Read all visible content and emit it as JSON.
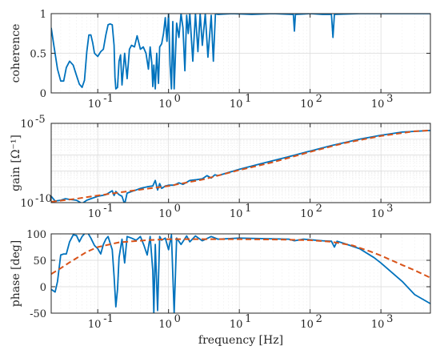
{
  "chart_data": [
    {
      "type": "line",
      "ylabel": "coherence",
      "xscale": "log",
      "xlim": [
        0.022,
        5000
      ],
      "ylim": [
        0,
        1
      ],
      "yticks": [
        {
          "v": 0,
          "label": "0"
        },
        {
          "v": 0.5,
          "label": "0.5"
        },
        {
          "v": 1,
          "label": "1"
        }
      ],
      "xtick_labels": [
        "10",
        "10",
        "10",
        "10",
        "10"
      ],
      "xtick_exponents": [
        "-1",
        "0",
        "1",
        "2",
        "3"
      ],
      "xtick_values": [
        0.1,
        1,
        10,
        100,
        1000
      ],
      "grid": true,
      "series": [
        {
          "color": "#0072BD",
          "style": "solid",
          "points": [
            [
              0.022,
              0.82
            ],
            [
              0.024,
              0.6
            ],
            [
              0.027,
              0.3
            ],
            [
              0.03,
              0.15
            ],
            [
              0.033,
              0.15
            ],
            [
              0.036,
              0.32
            ],
            [
              0.04,
              0.4
            ],
            [
              0.045,
              0.35
            ],
            [
              0.05,
              0.22
            ],
            [
              0.055,
              0.11
            ],
            [
              0.06,
              0.07
            ],
            [
              0.065,
              0.16
            ],
            [
              0.07,
              0.52
            ],
            [
              0.075,
              0.73
            ],
            [
              0.08,
              0.73
            ],
            [
              0.085,
              0.63
            ],
            [
              0.09,
              0.5
            ],
            [
              0.1,
              0.46
            ],
            [
              0.11,
              0.52
            ],
            [
              0.12,
              0.55
            ],
            [
              0.13,
              0.73
            ],
            [
              0.14,
              0.86
            ],
            [
              0.15,
              0.87
            ],
            [
              0.16,
              0.86
            ],
            [
              0.17,
              0.6
            ],
            [
              0.175,
              0.2
            ],
            [
              0.18,
              0.05
            ],
            [
              0.19,
              0.07
            ],
            [
              0.2,
              0.4
            ],
            [
              0.21,
              0.48
            ],
            [
              0.22,
              0.1
            ],
            [
              0.24,
              0.5
            ],
            [
              0.26,
              0.18
            ],
            [
              0.28,
              0.55
            ],
            [
              0.3,
              0.6
            ],
            [
              0.33,
              0.58
            ],
            [
              0.36,
              0.72
            ],
            [
              0.4,
              0.55
            ],
            [
              0.44,
              0.58
            ],
            [
              0.48,
              0.5
            ],
            [
              0.52,
              0.3
            ],
            [
              0.55,
              0.58
            ],
            [
              0.58,
              0.38
            ],
            [
              0.6,
              0.08
            ],
            [
              0.62,
              0.35
            ],
            [
              0.65,
              0.05
            ],
            [
              0.68,
              0.5
            ],
            [
              0.72,
              0.12
            ],
            [
              0.75,
              0.58
            ],
            [
              0.8,
              0.62
            ],
            [
              0.85,
              0.75
            ],
            [
              0.9,
              0.95
            ],
            [
              0.95,
              0.65
            ],
            [
              1.0,
              1.0
            ],
            [
              1.05,
              0.35
            ],
            [
              1.1,
              0.05
            ],
            [
              1.15,
              0.9
            ],
            [
              1.2,
              0.05
            ],
            [
              1.3,
              0.88
            ],
            [
              1.4,
              0.7
            ],
            [
              1.5,
              1.0
            ],
            [
              1.6,
              0.82
            ],
            [
              1.7,
              0.28
            ],
            [
              1.8,
              0.98
            ],
            [
              1.9,
              0.75
            ],
            [
              2.0,
              1.0
            ],
            [
              2.2,
              0.4
            ],
            [
              2.4,
              1.0
            ],
            [
              2.6,
              0.52
            ],
            [
              2.8,
              1.0
            ],
            [
              3.0,
              0.6
            ],
            [
              3.3,
              1.0
            ],
            [
              3.6,
              0.45
            ],
            [
              4.0,
              0.98
            ],
            [
              4.3,
              0.4
            ],
            [
              4.6,
              1.0
            ],
            [
              5,
              0.99
            ],
            [
              8,
              1.0
            ],
            [
              15,
              0.99
            ],
            [
              30,
              1.0
            ],
            [
              55,
              0.99
            ],
            [
              58,
              0.99
            ],
            [
              60,
              0.78
            ],
            [
              62,
              0.99
            ],
            [
              100,
              1.0
            ],
            [
              150,
              0.99
            ],
            [
              200,
              0.99
            ],
            [
              210,
              0.7
            ],
            [
              220,
              0.99
            ],
            [
              500,
              1.0
            ],
            [
              1000,
              1.0
            ],
            [
              5000,
              1.0
            ]
          ]
        }
      ]
    },
    {
      "type": "line",
      "ylabel": "gain [Ω⁻¹]",
      "xscale": "log",
      "yscale": "log",
      "xlim": [
        0.022,
        5000
      ],
      "ylim_exponent": [
        -10,
        -5
      ],
      "yticks": [
        {
          "v": -10,
          "label": "10",
          "exp": "-10"
        },
        {
          "v": -5,
          "label": "10",
          "exp": "-5"
        }
      ],
      "xtick_labels": [
        "10",
        "10",
        "10",
        "10",
        "10"
      ],
      "xtick_exponents": [
        "-1",
        "0",
        "1",
        "2",
        "3"
      ],
      "xtick_values": [
        0.1,
        1,
        10,
        100,
        1000
      ],
      "grid": true,
      "series": [
        {
          "color": "#0072BD",
          "style": "solid",
          "points": [
            [
              0.022,
              -9.6
            ],
            [
              0.025,
              -9.9
            ],
            [
              0.03,
              -9.85
            ],
            [
              0.035,
              -9.75
            ],
            [
              0.04,
              -9.8
            ],
            [
              0.05,
              -9.85
            ],
            [
              0.06,
              -10.05
            ],
            [
              0.07,
              -9.85
            ],
            [
              0.08,
              -9.75
            ],
            [
              0.1,
              -9.6
            ],
            [
              0.13,
              -9.5
            ],
            [
              0.16,
              -9.25
            ],
            [
              0.17,
              -9.55
            ],
            [
              0.18,
              -9.3
            ],
            [
              0.2,
              -9.5
            ],
            [
              0.22,
              -9.6
            ],
            [
              0.24,
              -10.1
            ],
            [
              0.26,
              -9.4
            ],
            [
              0.3,
              -9.3
            ],
            [
              0.35,
              -9.2
            ],
            [
              0.4,
              -9.1
            ],
            [
              0.5,
              -9.0
            ],
            [
              0.6,
              -8.95
            ],
            [
              0.65,
              -8.6
            ],
            [
              0.7,
              -9.2
            ],
            [
              0.75,
              -8.8
            ],
            [
              0.8,
              -9.1
            ],
            [
              0.9,
              -8.95
            ],
            [
              1.0,
              -8.9
            ],
            [
              1.2,
              -8.9
            ],
            [
              1.4,
              -8.75
            ],
            [
              1.6,
              -8.85
            ],
            [
              2.0,
              -8.6
            ],
            [
              2.5,
              -8.55
            ],
            [
              3.0,
              -8.5
            ],
            [
              3.5,
              -8.3
            ],
            [
              4.0,
              -8.45
            ],
            [
              4.5,
              -8.25
            ],
            [
              5,
              -8.3
            ],
            [
              10,
              -7.9
            ],
            [
              20,
              -7.55
            ],
            [
              50,
              -7.1
            ],
            [
              100,
              -6.75
            ],
            [
              200,
              -6.4
            ],
            [
              500,
              -6.0
            ],
            [
              1000,
              -5.75
            ],
            [
              2000,
              -5.55
            ],
            [
              5000,
              -5.45
            ]
          ]
        },
        {
          "color": "#D95319",
          "style": "dashed",
          "points": [
            [
              0.022,
              -9.95
            ],
            [
              0.05,
              -9.75
            ],
            [
              0.1,
              -9.55
            ],
            [
              0.3,
              -9.25
            ],
            [
              1,
              -8.95
            ],
            [
              3,
              -8.55
            ],
            [
              10,
              -7.95
            ],
            [
              30,
              -7.45
            ],
            [
              100,
              -6.8
            ],
            [
              300,
              -6.25
            ],
            [
              1000,
              -5.8
            ],
            [
              3000,
              -5.5
            ],
            [
              5000,
              -5.45
            ]
          ]
        }
      ]
    },
    {
      "type": "line",
      "ylabel": "phase [deg]",
      "xlabel": "frequency [Hz]",
      "xscale": "log",
      "xlim": [
        0.022,
        5000
      ],
      "ylim": [
        -50,
        100
      ],
      "yticks": [
        {
          "v": -50,
          "label": "-50"
        },
        {
          "v": 0,
          "label": "0"
        },
        {
          "v": 50,
          "label": "50"
        },
        {
          "v": 100,
          "label": "100"
        }
      ],
      "xtick_labels": [
        "10",
        "10",
        "10",
        "10",
        "10"
      ],
      "xtick_exponents": [
        "-1",
        "0",
        "1",
        "2",
        "3"
      ],
      "xtick_values": [
        0.1,
        1,
        10,
        100,
        1000
      ],
      "grid": true,
      "series": [
        {
          "color": "#0072BD",
          "style": "solid",
          "points": [
            [
              0.022,
              -5
            ],
            [
              0.025,
              -10
            ],
            [
              0.027,
              10
            ],
            [
              0.03,
              60
            ],
            [
              0.033,
              62
            ],
            [
              0.036,
              62
            ],
            [
              0.04,
              85
            ],
            [
              0.045,
              98
            ],
            [
              0.05,
              97
            ],
            [
              0.055,
              85
            ],
            [
              0.06,
              95
            ],
            [
              0.07,
              105
            ],
            [
              0.08,
              92
            ],
            [
              0.09,
              78
            ],
            [
              0.1,
              72
            ],
            [
              0.11,
              62
            ],
            [
              0.12,
              80
            ],
            [
              0.13,
              90
            ],
            [
              0.14,
              95
            ],
            [
              0.15,
              82
            ],
            [
              0.16,
              70
            ],
            [
              0.17,
              20
            ],
            [
              0.18,
              -38
            ],
            [
              0.19,
              -5
            ],
            [
              0.2,
              55
            ],
            [
              0.22,
              90
            ],
            [
              0.24,
              45
            ],
            [
              0.26,
              95
            ],
            [
              0.3,
              92
            ],
            [
              0.35,
              88
            ],
            [
              0.4,
              95
            ],
            [
              0.45,
              78
            ],
            [
              0.5,
              60
            ],
            [
              0.55,
              95
            ],
            [
              0.6,
              30
            ],
            [
              0.62,
              -50
            ],
            [
              0.65,
              80
            ],
            [
              0.7,
              -45
            ],
            [
              0.75,
              95
            ],
            [
              0.8,
              88
            ],
            [
              0.9,
              92
            ],
            [
              1.0,
              70
            ],
            [
              1.1,
              98
            ],
            [
              1.2,
              -50
            ],
            [
              1.3,
              92
            ],
            [
              1.5,
              80
            ],
            [
              1.8,
              96
            ],
            [
              2.0,
              85
            ],
            [
              2.4,
              96
            ],
            [
              3,
              87
            ],
            [
              4,
              95
            ],
            [
              5,
              90
            ],
            [
              10,
              92
            ],
            [
              20,
              91
            ],
            [
              50,
              90
            ],
            [
              60,
              87
            ],
            [
              80,
              90
            ],
            [
              100,
              89
            ],
            [
              150,
              87
            ],
            [
              200,
              86
            ],
            [
              220,
              75
            ],
            [
              240,
              86
            ],
            [
              300,
              82
            ],
            [
              500,
              72
            ],
            [
              800,
              55
            ],
            [
              1000,
              45
            ],
            [
              2000,
              10
            ],
            [
              3000,
              -15
            ],
            [
              5000,
              -32
            ]
          ]
        },
        {
          "color": "#D95319",
          "style": "dashed",
          "points": [
            [
              0.022,
              24
            ],
            [
              0.03,
              35
            ],
            [
              0.04,
              46
            ],
            [
              0.05,
              54
            ],
            [
              0.07,
              66
            ],
            [
              0.1,
              75
            ],
            [
              0.2,
              84
            ],
            [
              0.5,
              88
            ],
            [
              1,
              90
            ],
            [
              10,
              90
            ],
            [
              50,
              89
            ],
            [
              100,
              88
            ],
            [
              200,
              85
            ],
            [
              400,
              78
            ],
            [
              700,
              67
            ],
            [
              1000,
              59
            ],
            [
              2000,
              41
            ],
            [
              3000,
              31
            ],
            [
              5000,
              17
            ]
          ]
        }
      ]
    }
  ]
}
